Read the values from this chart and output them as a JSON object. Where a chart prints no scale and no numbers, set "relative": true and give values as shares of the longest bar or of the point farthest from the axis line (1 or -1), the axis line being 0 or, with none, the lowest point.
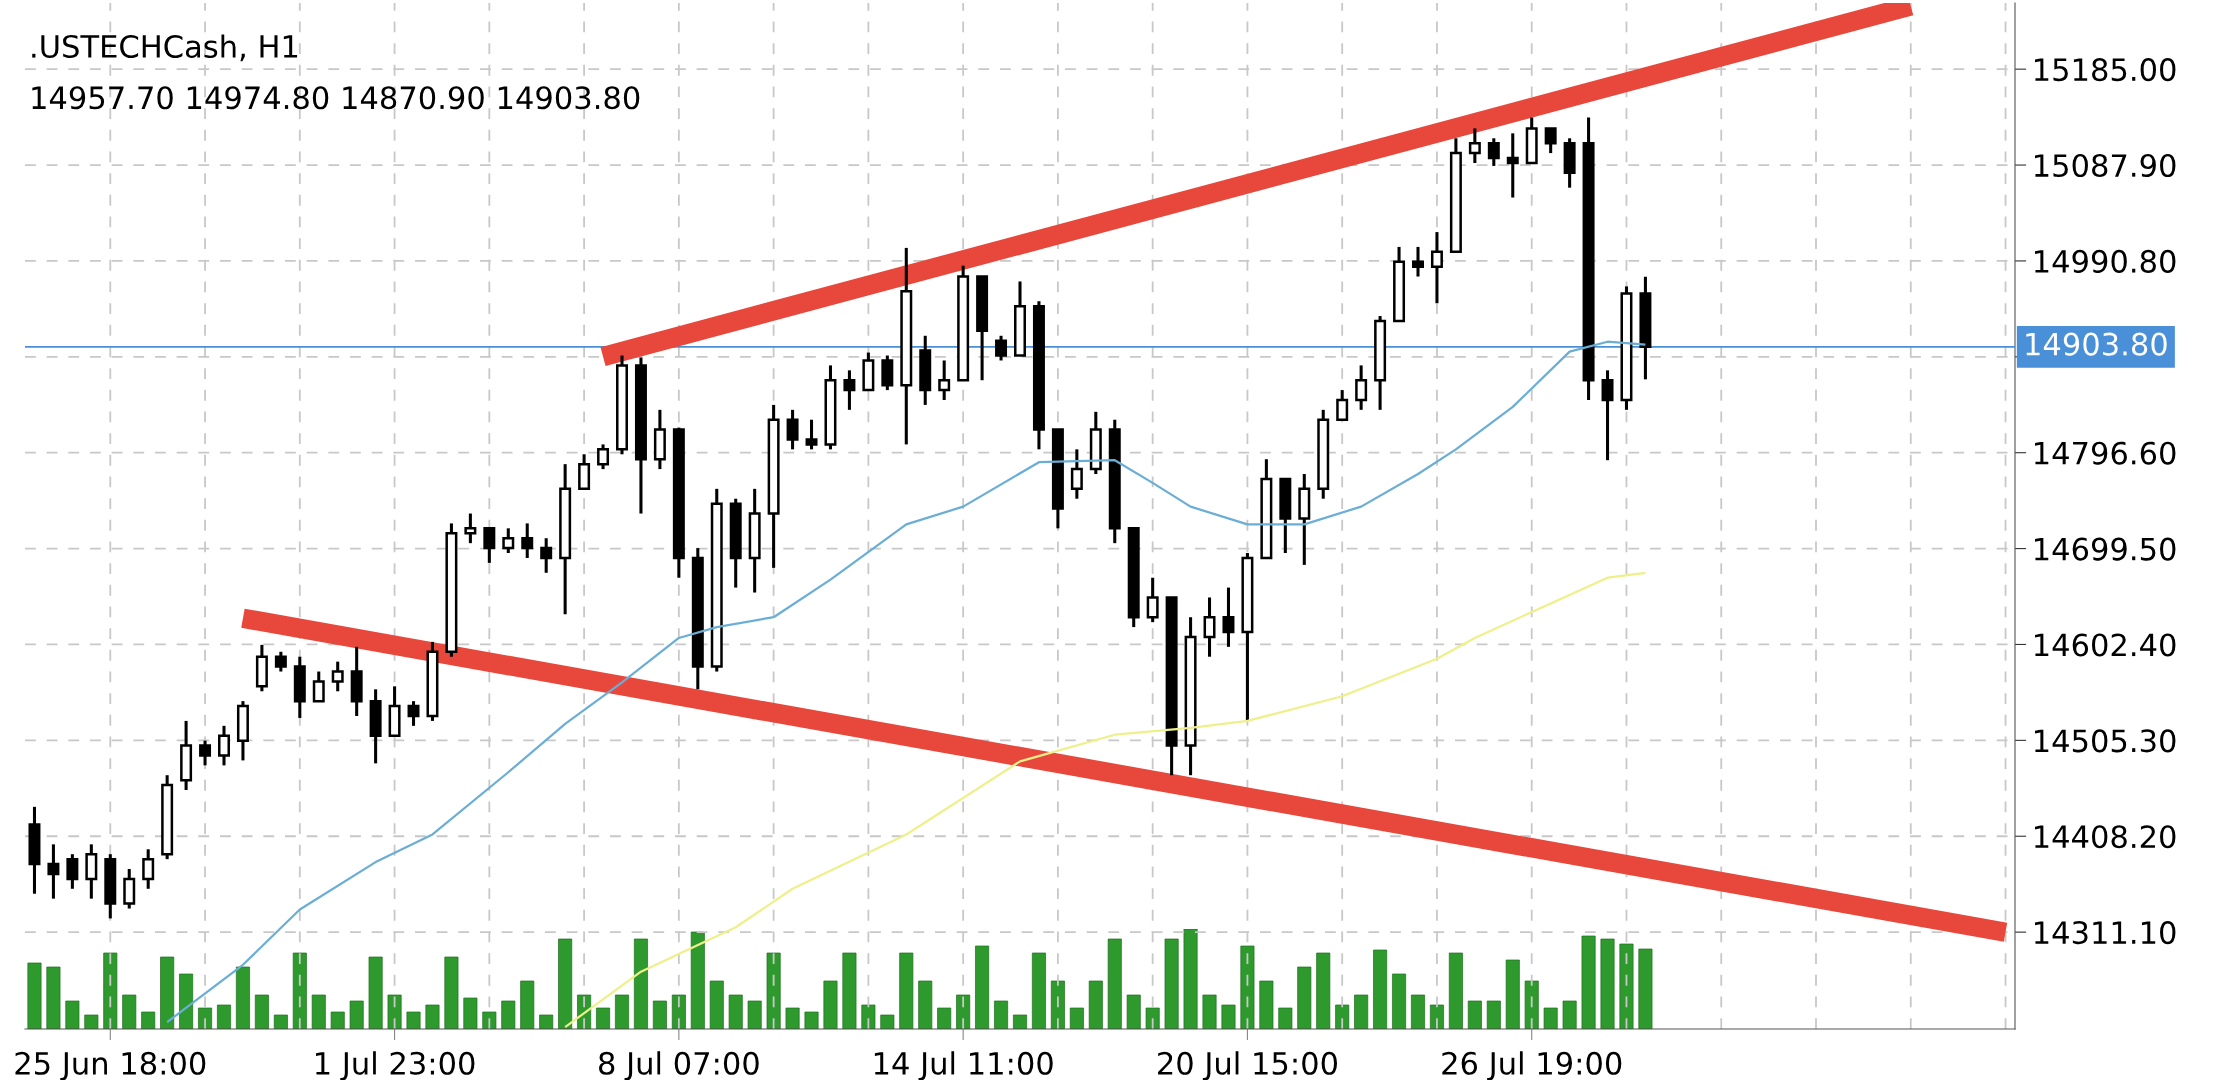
{
  "chart_data": [
    {
      "type": "candlestick",
      "title": ".USTECHCash, H1",
      "subtitle": "14957.70 14974.80 14870.90 14903.80",
      "categories": [
        null,
        null,
        null,
        null,
        "25 Jun 18:00",
        null,
        null,
        null,
        null,
        null,
        null,
        null,
        null,
        null,
        null,
        null,
        null,
        null,
        null,
        "1 Jul 23:00",
        null,
        null,
        null,
        null,
        null,
        null,
        null,
        null,
        null,
        null,
        null,
        null,
        null,
        null,
        "8 Jul 07:00",
        null,
        null,
        null,
        null,
        null,
        null,
        null,
        null,
        null,
        null,
        null,
        null,
        null,
        null,
        "14 Jul 11:00",
        null,
        null,
        null,
        null,
        null,
        null,
        null,
        null,
        null,
        null,
        null,
        null,
        null,
        null,
        "20 Jul 15:00",
        null,
        null,
        null,
        null,
        null,
        null,
        null,
        null,
        null,
        null,
        null,
        null,
        null,
        null,
        "26 Jul 19:00",
        null,
        null,
        null,
        null,
        null,
        null,
        null,
        null,
        null,
        null,
        null,
        null,
        null,
        null,
        null,
        null,
        null,
        null,
        null,
        null,
        null,
        null,
        null,
        null,
        null
      ],
      "ohlc": [
        [
          14420,
          14438,
          14350,
          14380
        ],
        [
          14380,
          14400,
          14345,
          14370
        ],
        [
          14385,
          14390,
          14355,
          14365
        ],
        [
          14365,
          14400,
          14345,
          14390
        ],
        [
          14385,
          14390,
          14325,
          14340
        ],
        [
          14340,
          14375,
          14335,
          14365
        ],
        [
          14365,
          14395,
          14355,
          14385
        ],
        [
          14390,
          14470,
          14385,
          14460
        ],
        [
          14465,
          14525,
          14455,
          14500
        ],
        [
          14500,
          14505,
          14480,
          14490
        ],
        [
          14490,
          14520,
          14480,
          14510
        ],
        [
          14505,
          14545,
          14485,
          14540
        ],
        [
          14560,
          14602,
          14555,
          14590
        ],
        [
          14590,
          14595,
          14575,
          14580
        ],
        [
          14580,
          14590,
          14528,
          14545
        ],
        [
          14545,
          14575,
          14545,
          14565
        ],
        [
          14565,
          14585,
          14555,
          14575
        ],
        [
          14575,
          14600,
          14530,
          14545
        ],
        [
          14545,
          14557,
          14482,
          14510
        ],
        [
          14510,
          14560,
          14510,
          14540
        ],
        [
          14540,
          14545,
          14520,
          14530
        ],
        [
          14530,
          14605,
          14525,
          14595
        ],
        [
          14595,
          14725,
          14590,
          14715
        ],
        [
          14715,
          14735,
          14705,
          14720
        ],
        [
          14720,
          14720,
          14685,
          14700
        ],
        [
          14700,
          14720,
          14695,
          14710
        ],
        [
          14710,
          14725,
          14690,
          14700
        ],
        [
          14700,
          14710,
          14675,
          14690
        ],
        [
          14690,
          14785,
          14633,
          14760
        ],
        [
          14760,
          14795,
          14760,
          14785
        ],
        [
          14785,
          14805,
          14780,
          14800
        ],
        [
          14800,
          14895,
          14795,
          14885
        ],
        [
          14885,
          14893,
          14735,
          14790
        ],
        [
          14790,
          14840,
          14780,
          14820
        ],
        [
          14820,
          14822,
          14670,
          14690
        ],
        [
          14690,
          14700,
          14557,
          14580
        ],
        [
          14580,
          14760,
          14575,
          14745
        ],
        [
          14745,
          14750,
          14660,
          14690
        ],
        [
          14690,
          14760,
          14655,
          14735
        ],
        [
          14735,
          14845,
          14680,
          14830
        ],
        [
          14830,
          14840,
          14800,
          14810
        ],
        [
          14810,
          14830,
          14800,
          14805
        ],
        [
          14805,
          14885,
          14800,
          14870
        ],
        [
          14870,
          14880,
          14840,
          14860
        ],
        [
          14860,
          14898,
          14860,
          14890
        ],
        [
          14890,
          14895,
          14860,
          14865
        ],
        [
          14865,
          15004,
          14805,
          14960
        ],
        [
          14900,
          14915,
          14845,
          14860
        ],
        [
          14860,
          14890,
          14850,
          14870
        ],
        [
          14870,
          14986,
          14870,
          14975
        ],
        [
          14975,
          14975,
          14870,
          14920
        ],
        [
          14910,
          14915,
          14890,
          14895
        ],
        [
          14895,
          14970,
          14895,
          14945
        ],
        [
          14945,
          14950,
          14800,
          14820
        ],
        [
          14820,
          14820,
          14720,
          14740
        ],
        [
          14760,
          14800,
          14750,
          14780
        ],
        [
          14780,
          14838,
          14775,
          14820
        ],
        [
          14820,
          14830,
          14705,
          14720
        ],
        [
          14720,
          14720,
          14620,
          14630
        ],
        [
          14630,
          14670,
          14625,
          14650
        ],
        [
          14650,
          14650,
          14470,
          14500
        ],
        [
          14500,
          14630,
          14470,
          14610
        ],
        [
          14610,
          14650,
          14590,
          14630
        ],
        [
          14630,
          14660,
          14600,
          14615
        ],
        [
          14615,
          14695,
          14525,
          14690
        ],
        [
          14690,
          14790,
          14690,
          14770
        ],
        [
          14770,
          14770,
          14695,
          14730
        ],
        [
          14730,
          14775,
          14683,
          14760
        ],
        [
          14760,
          14840,
          14750,
          14830
        ],
        [
          14830,
          14860,
          14830,
          14850
        ],
        [
          14850,
          14885,
          14840,
          14870
        ],
        [
          14870,
          14935,
          14840,
          14930
        ],
        [
          14930,
          15005,
          14930,
          14990
        ],
        [
          14990,
          15005,
          14975,
          14985
        ],
        [
          14985,
          15020,
          14948,
          15000
        ],
        [
          15000,
          15115,
          15000,
          15100
        ],
        [
          15100,
          15125,
          15090,
          15110
        ],
        [
          15110,
          15115,
          15087,
          15095
        ],
        [
          15095,
          15120,
          15055,
          15090
        ],
        [
          15090,
          15136,
          15090,
          15125
        ],
        [
          15125,
          15125,
          15100,
          15110
        ],
        [
          15110,
          15115,
          15065,
          15080
        ],
        [
          15110,
          15136,
          14850,
          14870
        ],
        [
          14870,
          14880,
          14789,
          14850
        ],
        [
          14850,
          14965,
          14840,
          14957.7
        ],
        [
          14957.7,
          14974.8,
          14870.9,
          14903.8
        ],
        null,
        null,
        null,
        null,
        null,
        null,
        null,
        null,
        null,
        null,
        null,
        null,
        null,
        null,
        null,
        null,
        null,
        null,
        null
      ],
      "series": [
        {
          "type": "line",
          "color": "#6aaed6",
          "values": [
            null,
            null,
            null,
            null,
            null,
            null,
            null,
            14220,
            null,
            null,
            null,
            14278,
            null,
            null,
            14334,
            null,
            null,
            null,
            14382,
            null,
            null,
            14410,
            null,
            null,
            null,
            14473,
            null,
            null,
            14522,
            null,
            null,
            14564,
            null,
            null,
            14609,
            null,
            14620,
            null,
            null,
            14630,
            null,
            null,
            14668,
            null,
            null,
            null,
            14724,
            null,
            null,
            14742,
            null,
            null,
            null,
            14787,
            null,
            null,
            null,
            14789,
            null,
            14766,
            null,
            14742,
            null,
            null,
            14724,
            null,
            null,
            14724,
            null,
            null,
            14742,
            null,
            null,
            14775,
            null,
            14800,
            null,
            null,
            14843,
            null,
            null,
            14899,
            null,
            14909,
            null,
            14906,
            null,
            null,
            null,
            null,
            null,
            null,
            null,
            null,
            null,
            null,
            null,
            null,
            null,
            null,
            null,
            null,
            null,
            null,
            null
          ]
        },
        {
          "type": "line",
          "color": "#eef08a",
          "values": [
            null,
            null,
            null,
            null,
            null,
            null,
            null,
            null,
            null,
            null,
            null,
            null,
            null,
            null,
            null,
            null,
            null,
            null,
            null,
            null,
            null,
            null,
            null,
            null,
            null,
            null,
            null,
            null,
            14215,
            null,
            null,
            null,
            14271,
            null,
            null,
            null,
            null,
            14316,
            null,
            null,
            14355,
            null,
            null,
            null,
            null,
            null,
            14410,
            null,
            null,
            null,
            null,
            null,
            14484,
            null,
            null,
            null,
            null,
            14511,
            null,
            null,
            null,
            14518,
            null,
            null,
            14525,
            null,
            null,
            null,
            null,
            14550,
            null,
            null,
            null,
            null,
            14588,
            null,
            14609,
            null,
            null,
            null,
            14644,
            null,
            null,
            14670,
            null,
            14675,
            null,
            null,
            null,
            null,
            null,
            null,
            null,
            null,
            null,
            null,
            null,
            null,
            null,
            null,
            null,
            null,
            null,
            null,
            null
          ]
        },
        {
          "type": "line",
          "color": "#e8473b",
          "values": [
            null,
            null,
            null,
            null,
            null,
            null,
            null,
            null,
            null,
            null,
            null,
            null,
            null,
            null,
            null,
            null,
            null,
            null,
            null,
            null,
            null,
            null,
            null,
            null,
            null,
            null,
            null,
            null,
            null,
            null,
            14894,
            null,
            null,
            null,
            null,
            null,
            null,
            null,
            null,
            null,
            null,
            null,
            null,
            null,
            null,
            null,
            null,
            null,
            null,
            null,
            null,
            null,
            null,
            null,
            null,
            null,
            null,
            null,
            null,
            null,
            null,
            null,
            null,
            null,
            null,
            null,
            null,
            null,
            null,
            null,
            null,
            null,
            null,
            null,
            null,
            null,
            null,
            null,
            null,
            null,
            null,
            null,
            null,
            null,
            null,
            null,
            null,
            null,
            null,
            null,
            null,
            null,
            null,
            null,
            null,
            null,
            null,
            null,
            null,
            15249,
            null,
            null,
            null,
            null,
            null
          ]
        },
        {
          "type": "line",
          "color": "#e8473b",
          "values": [
            null,
            null,
            null,
            null,
            null,
            null,
            null,
            null,
            null,
            null,
            null,
            14629,
            null,
            null,
            null,
            null,
            null,
            null,
            null,
            null,
            null,
            null,
            null,
            null,
            null,
            null,
            null,
            null,
            null,
            null,
            null,
            null,
            null,
            null,
            null,
            null,
            null,
            null,
            null,
            null,
            null,
            null,
            null,
            null,
            null,
            null,
            null,
            null,
            null,
            null,
            null,
            null,
            null,
            null,
            null,
            null,
            null,
            null,
            null,
            null,
            null,
            null,
            null,
            null,
            null,
            null,
            null,
            null,
            null,
            null,
            null,
            null,
            null,
            null,
            null,
            null,
            null,
            null,
            null,
            null,
            null,
            null,
            null,
            null,
            null,
            null,
            null,
            null,
            null,
            null,
            null,
            null,
            null,
            null,
            null,
            null,
            null,
            null,
            null,
            null,
            null,
            null,
            null,
            null,
            14311
          ]
        }
      ],
      "ref_lines": [
        {
          "axis": "y",
          "value": 14903.8,
          "label": "14903.80",
          "color": "#4a90d9"
        }
      ],
      "ylim": [
        14213,
        15252
      ],
      "yticks": [
        {
          "value": 14311.1,
          "label": "14311.10"
        },
        {
          "value": 14408.2,
          "label": "14408.20"
        },
        {
          "value": 14505.3,
          "label": "14505.30"
        },
        {
          "value": 14602.4,
          "label": "14602.40"
        },
        {
          "value": 14699.5,
          "label": "14699.50"
        },
        {
          "value": 14796.6,
          "label": "14796.60"
        },
        {
          "value": 14893.7,
          "label": null
        },
        {
          "value": 14990.8,
          "label": "14990.80"
        },
        {
          "value": 15087.9,
          "label": "15087.90"
        },
        {
          "value": 15185.0,
          "label": "15185.00"
        }
      ],
      "grid": true
    },
    {
      "type": "bar",
      "relative": true,
      "categories": [
        null,
        null,
        null,
        null,
        null,
        null,
        null,
        null,
        null,
        null,
        null,
        null,
        null,
        null,
        null,
        null,
        null,
        null,
        null,
        null,
        null,
        null,
        null,
        null,
        null,
        null,
        null,
        null,
        null,
        null,
        null,
        null,
        null,
        null,
        null,
        null,
        null,
        null,
        null,
        null,
        null,
        null,
        null,
        null,
        null,
        null,
        null,
        null,
        null,
        null,
        null,
        null,
        null,
        null,
        null,
        null,
        null,
        null,
        null,
        null,
        null,
        null,
        null,
        null,
        null,
        null,
        null,
        null,
        null,
        null,
        null,
        null,
        null,
        null,
        null,
        null,
        null,
        null,
        null,
        null,
        null,
        null,
        null,
        null,
        null,
        null,
        null,
        null,
        null,
        null,
        null,
        null,
        null,
        null,
        null,
        null,
        null,
        null,
        null,
        null,
        null,
        null,
        null,
        null,
        null
      ],
      "series": [
        {
          "color": "#2e9a2e",
          "values": [
            0.66,
            0.62,
            0.28,
            0.14,
            0.76,
            0.34,
            0.17,
            0.72,
            0.55,
            0.21,
            0.24,
            0.62,
            0.34,
            0.14,
            0.76,
            0.34,
            0.17,
            0.28,
            0.72,
            0.34,
            0.17,
            0.24,
            0.72,
            0.31,
            0.17,
            0.28,
            0.48,
            0.14,
            0.9,
            0.34,
            0.21,
            0.34,
            0.9,
            0.28,
            0.34,
            0.97,
            0.48,
            0.34,
            0.28,
            0.76,
            0.21,
            0.17,
            0.48,
            0.76,
            0.24,
            0.14,
            0.76,
            0.48,
            0.21,
            0.34,
            0.83,
            0.28,
            0.14,
            0.76,
            0.48,
            0.21,
            0.48,
            0.9,
            0.34,
            0.21,
            0.9,
            1,
            0.34,
            0.24,
            0.83,
            0.48,
            0.21,
            0.62,
            0.76,
            0.24,
            0.34,
            0.79,
            0.55,
            0.34,
            0.24,
            0.76,
            0.28,
            0.28,
            0.69,
            0.48,
            0.21,
            0.28,
            0.93,
            0.9,
            0.85,
            0.8,
            null,
            null,
            null,
            null,
            null,
            null,
            null,
            null,
            null,
            null,
            null,
            null,
            null,
            null,
            null,
            null,
            null,
            null,
            null
          ]
        }
      ]
    }
  ]
}
